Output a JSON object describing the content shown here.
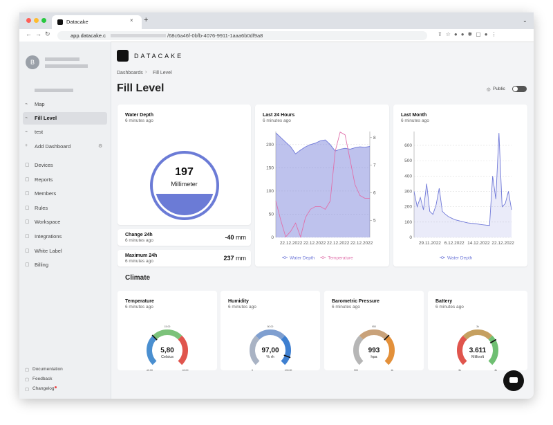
{
  "browser": {
    "tab_title": "Datacake",
    "url_host": "app.datacake.c",
    "url_path": "/68c6a46f-0bfb-4076-9911-1aaa6b0df9a8"
  },
  "sidebar": {
    "avatar": "B",
    "nav": [
      "Map",
      "Fill Level",
      "test",
      "Add Dashboard"
    ],
    "menu": [
      "Devices",
      "Reports",
      "Members",
      "Rules",
      "Workspace",
      "Integrations",
      "White Label",
      "Billing"
    ],
    "footer": [
      "Documentation",
      "Feedback",
      "Changelog"
    ]
  },
  "header": {
    "logo": "DATACAKE",
    "breadcrumb": [
      "Dashboards",
      "Fill Level"
    ],
    "title": "Fill Level",
    "visibility": "Public"
  },
  "widgets": {
    "water_depth": {
      "title": "Water Depth",
      "updated": "6 minutes ago",
      "value": "197",
      "unit": "Millimeter"
    },
    "change_24h": {
      "title": "Change 24h",
      "updated": "6 minutes ago",
      "value": "-40",
      "unit": "mm"
    },
    "max_24h": {
      "title": "Maximum 24h",
      "updated": "6 minutes ago",
      "value": "237",
      "unit": "mm"
    },
    "last_24h": {
      "title": "Last 24 Hours",
      "updated": "6 minutes ago",
      "type": "line",
      "x_labels": [
        "22.12.2022",
        "22.12.2022",
        "22.12.2022",
        "22.12.2022"
      ],
      "ylim": [
        0,
        228
      ],
      "yticks": [
        0,
        50,
        100,
        150,
        200
      ],
      "y2lim": [
        4.38,
        8.22
      ],
      "y2ticks": [
        5,
        6,
        7,
        8
      ],
      "series": [
        {
          "name": "Water Depth",
          "color": "#6f78d8",
          "values": [
            225,
            215,
            205,
            195,
            180,
            188,
            195,
            200,
            203,
            208,
            210,
            200,
            186,
            190,
            192,
            190,
            193,
            195,
            194,
            196
          ]
        },
        {
          "name": "Temperature",
          "color": "#e070aa",
          "axis": "y2",
          "values": [
            5.7,
            5.0,
            4.4,
            4.6,
            4.9,
            4.4,
            5.1,
            5.4,
            5.5,
            5.5,
            5.4,
            5.7,
            7.5,
            8.2,
            8.1,
            7.2,
            6.3,
            5.9,
            5.8,
            5.8
          ]
        }
      ]
    },
    "last_month": {
      "title": "Last Month",
      "updated": "6 minutes ago",
      "type": "line",
      "x_labels": [
        "29.11.2022",
        "6.12.2022",
        "14.12.2022",
        "22.12.2022"
      ],
      "ylim": [
        0,
        690
      ],
      "yticks": [
        0,
        100,
        200,
        300,
        400,
        500,
        600
      ],
      "series": [
        {
          "name": "Water Depth",
          "color": "#6f78d8",
          "values": [
            300,
            200,
            260,
            180,
            350,
            170,
            150,
            210,
            320,
            170,
            150,
            135,
            125,
            115,
            110,
            105,
            100,
            95,
            92,
            90,
            88,
            85,
            82,
            80,
            78,
            400,
            250,
            680,
            200,
            220,
            300,
            180
          ]
        }
      ]
    }
  },
  "climate": {
    "title": "Climate",
    "gauges": [
      {
        "title": "Temperature",
        "updated": "6 minutes ago",
        "value": "5,80",
        "unit": "Celsius",
        "min": "-10.00",
        "mid": "15.00",
        "max": "40.00"
      },
      {
        "title": "Humidity",
        "updated": "6 minutes ago",
        "value": "97,00",
        "unit": "% rh",
        "min": "0",
        "mid": "50.00",
        "max": "100.00"
      },
      {
        "title": "Barometric Pressure",
        "updated": "6 minutes ago",
        "value": "993",
        "unit": "hpa",
        "min": "900",
        "mid": "950",
        "max": "1k"
      },
      {
        "title": "Battery",
        "updated": "6 minutes ago",
        "value": "3.611",
        "unit": "Millivolt",
        "min": "3k",
        "mid": "3k",
        "max": "4k"
      }
    ]
  }
}
